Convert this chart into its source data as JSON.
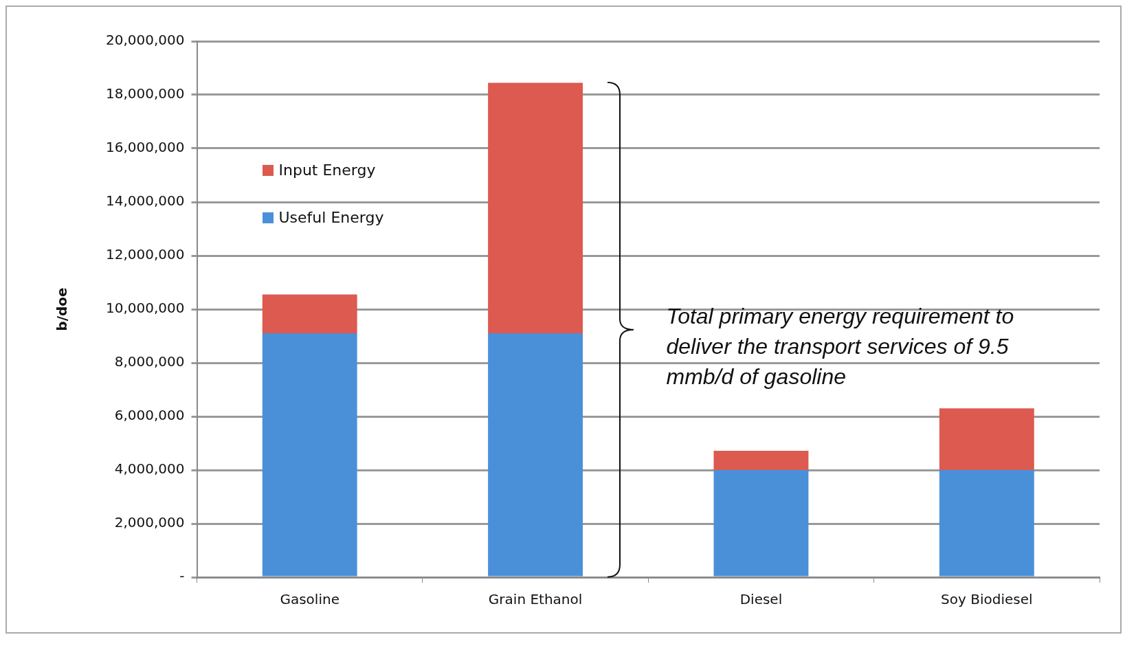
{
  "chart_data": {
    "type": "bar",
    "ylabel": "b/doe",
    "categories": [
      "Gasoline",
      "Grain Ethanol",
      "Diesel",
      "Soy Biodiesel"
    ],
    "stacked": true,
    "series": [
      {
        "name": "Useful Energy",
        "color": "#4a90d9",
        "values": [
          9100000,
          9100000,
          4000000,
          4000000
        ]
      },
      {
        "name": "Input Energy",
        "color": "#dc5a50",
        "values": [
          1450000,
          9350000,
          720000,
          2300000
        ]
      }
    ],
    "ylim": [
      0,
      20000000
    ],
    "yticks": [
      {
        "value": 0,
        "label": "-"
      },
      {
        "value": 2000000,
        "label": "2,000,000"
      },
      {
        "value": 4000000,
        "label": "4,000,000"
      },
      {
        "value": 6000000,
        "label": "6,000,000"
      },
      {
        "value": 8000000,
        "label": "8,000,000"
      },
      {
        "value": 10000000,
        "label": "10,000,000"
      },
      {
        "value": 12000000,
        "label": "12,000,000"
      },
      {
        "value": 14000000,
        "label": "14,000,000"
      },
      {
        "value": 16000000,
        "label": "16,000,000"
      },
      {
        "value": 18000000,
        "label": "18,000,000"
      },
      {
        "value": 20000000,
        "label": "20,000,000"
      }
    ],
    "grid": "y",
    "legend": "top left",
    "annotations": [
      "Total primary energy requirement to deliver the transport services of 9.5 mmb/d of gasoline"
    ]
  }
}
